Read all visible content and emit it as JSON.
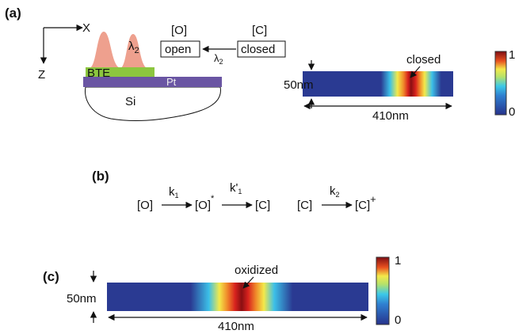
{
  "panel_a": {
    "label": "(a)",
    "axis_x": "X",
    "axis_z": "Z",
    "peak_wavelength": {
      "symbol": "λ",
      "subscript": "2"
    },
    "layers": {
      "bte": "BTE",
      "pt": "Pt",
      "si": "Si"
    },
    "states": {
      "open_species": "[O]",
      "open_label": "open",
      "closed_species": "[C]",
      "closed_label": "closed"
    },
    "transition_wavelength": {
      "symbol": "λ",
      "subscript": "2"
    },
    "map": {
      "annotation": "closed",
      "height": "50nm",
      "width": "410nm",
      "colorbar_max": 1,
      "colorbar_min": 0
    }
  },
  "panel_b": {
    "label": "(b)",
    "reaction_1": {
      "reactant": "[O]",
      "rate_1": {
        "symbol": "k",
        "subscript": "1"
      },
      "intermediate": {
        "species": "[O]",
        "superscript": "*"
      },
      "rate_2": {
        "symbol": "k'",
        "subscript": "1"
      },
      "product": "[C]"
    },
    "reaction_2": {
      "reactant": "[C]",
      "rate": {
        "symbol": "k",
        "subscript": "2"
      },
      "product": {
        "species": "[C]",
        "superscript": "+"
      }
    }
  },
  "panel_c": {
    "label": "(c)",
    "annotation": "oxidized",
    "height": "50nm",
    "width": "410nm",
    "colorbar_max": 1,
    "colorbar_min": 0
  }
}
